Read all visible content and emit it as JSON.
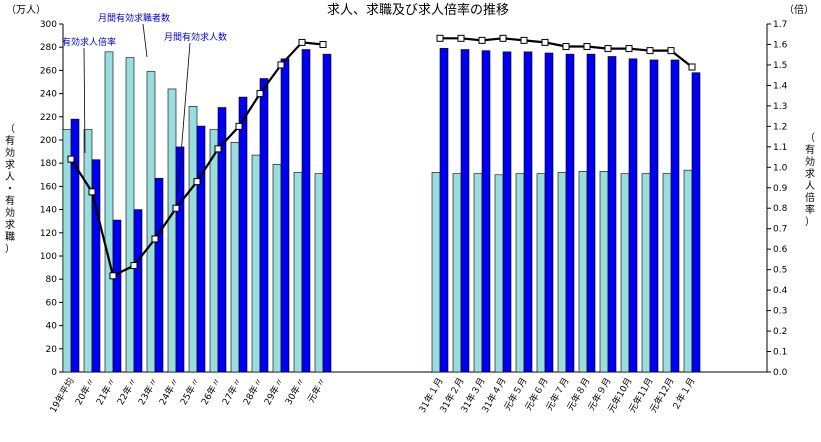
{
  "chart_data": {
    "type": "bar",
    "title": "求人、求職及び求人倍率の推移",
    "y_left": {
      "unit": "（万人）",
      "label": "（有効求人・有効求職）",
      "range": [
        0,
        300
      ],
      "step": 20
    },
    "y_right": {
      "unit": "（倍）",
      "label": "（有効求人倍率）",
      "range": [
        0,
        1.7
      ],
      "step": 0.1
    },
    "categories": [
      "19年平均",
      "20年〃",
      "21年〃",
      "22年〃",
      "23年〃",
      "24年〃",
      "25年〃",
      "26年〃",
      "27年〃",
      "28年〃",
      "29年〃",
      "30年〃",
      "元年〃",
      "31年１月",
      "31年２月",
      "31年３月",
      "31年４月",
      "元年５月",
      "元年６月",
      "元年７月",
      "元年８月",
      "元年９月",
      "元年10月",
      "元年11月",
      "元年12月",
      "２年１月"
    ],
    "series": [
      {
        "name": "月間有効求職者数",
        "axis": "left",
        "color": "#99dddd",
        "values": [
          209,
          209,
          276,
          271,
          259,
          244,
          229,
          209,
          198,
          187,
          179,
          172,
          171,
          172,
          171,
          171,
          170,
          171,
          171,
          172,
          173,
          173,
          171,
          171,
          171,
          174
        ]
      },
      {
        "name": "月間有効求人数",
        "axis": "left",
        "color": "#0000ee",
        "values": [
          218,
          183,
          131,
          140,
          167,
          194,
          212,
          228,
          237,
          253,
          270,
          278,
          274,
          279,
          278,
          277,
          276,
          276,
          275,
          274,
          274,
          272,
          270,
          269,
          269,
          258
        ]
      },
      {
        "name": "有効求人倍率",
        "axis": "right",
        "type": "line",
        "color": "#000000",
        "values": [
          1.04,
          0.88,
          0.47,
          0.52,
          0.65,
          0.8,
          0.93,
          1.09,
          1.2,
          1.36,
          1.5,
          1.61,
          1.6,
          1.63,
          1.63,
          1.62,
          1.63,
          1.62,
          1.61,
          1.59,
          1.59,
          1.58,
          1.58,
          1.57,
          1.57,
          1.49
        ]
      }
    ],
    "annotations": [
      "有効求人倍率",
      "月間有効求職者数",
      "月間有効求人数"
    ]
  }
}
